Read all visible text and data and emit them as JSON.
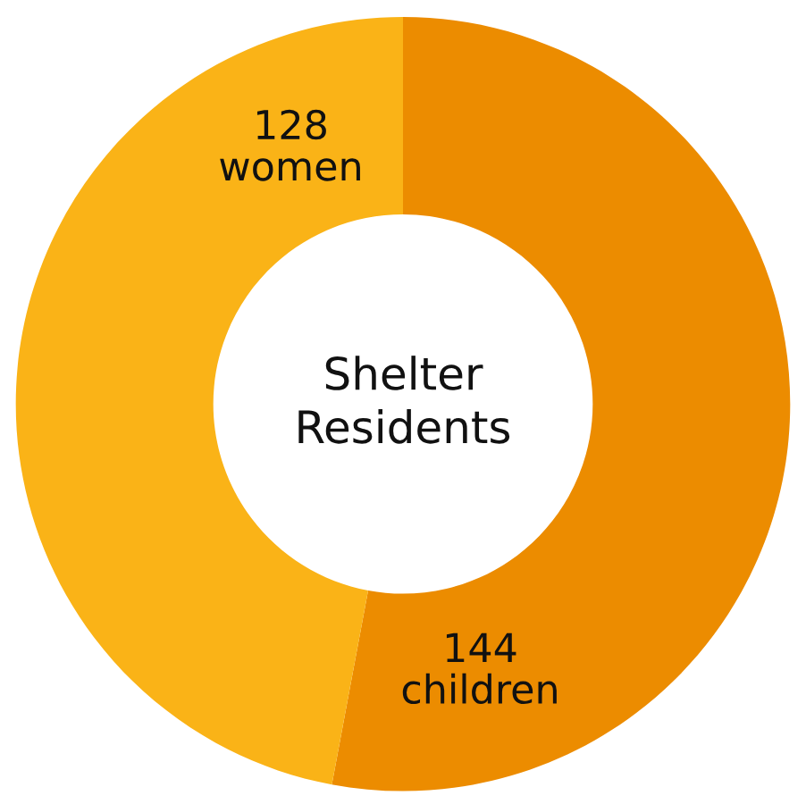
{
  "chart_data": {
    "type": "donut",
    "title": "Shelter\nResidents",
    "categories": [
      "children",
      "women"
    ],
    "values": [
      144,
      128
    ],
    "colors": [
      "#ec8c00",
      "#fab317"
    ],
    "data_labels": true
  }
}
